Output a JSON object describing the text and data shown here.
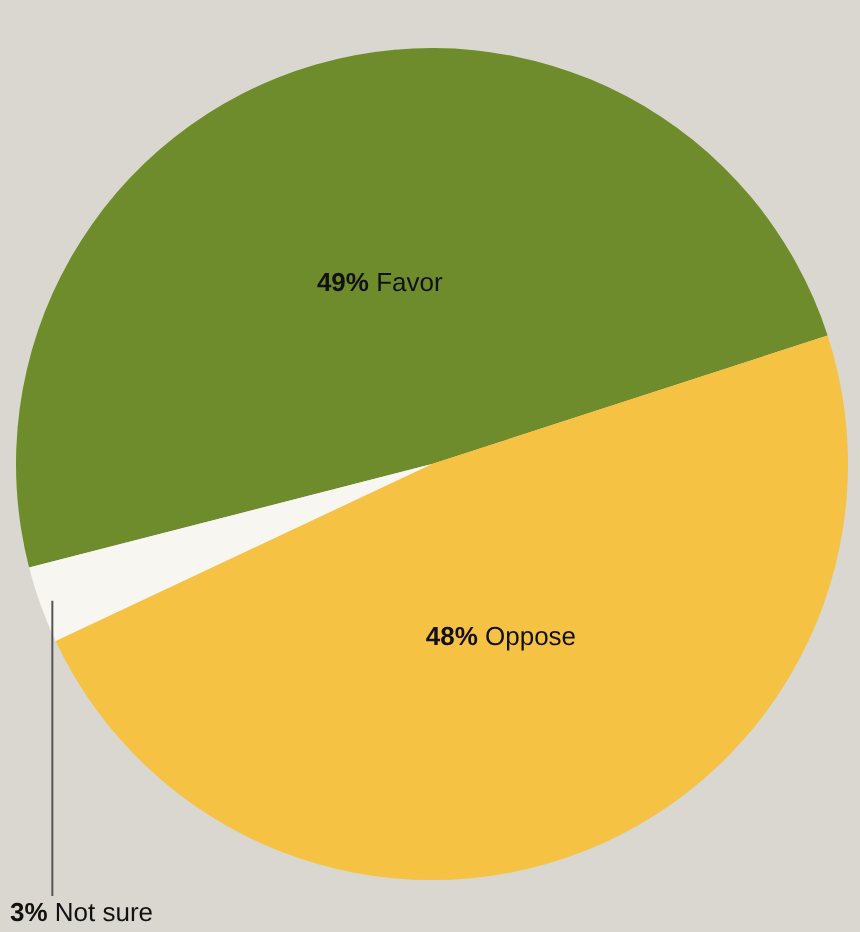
{
  "chart_data": {
    "type": "pie",
    "categories": [
      "Favor",
      "Oppose",
      "Not sure"
    ],
    "values": [
      49,
      48,
      3
    ],
    "colors": [
      "#6f8c2c",
      "#f6c244",
      "#f7f6f1"
    ],
    "value_labels": [
      "49%",
      "48%",
      "3%"
    ]
  }
}
